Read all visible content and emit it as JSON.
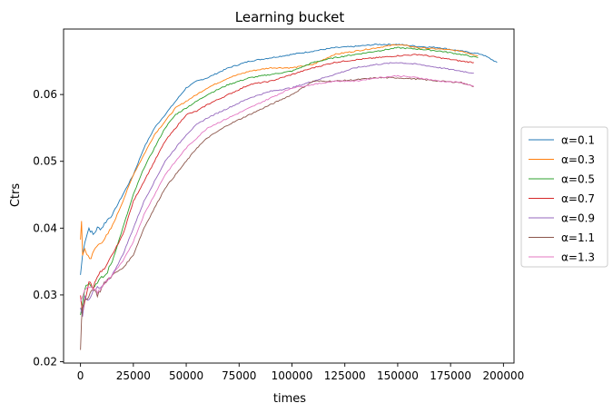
{
  "chart_data": {
    "type": "line",
    "title": "Learning bucket",
    "xlabel": "times",
    "ylabel": "Ctrs",
    "xlim": [
      -8000,
      205000
    ],
    "ylim": [
      0.0198,
      0.0698
    ],
    "xticks": [
      0,
      25000,
      50000,
      75000,
      100000,
      125000,
      150000,
      175000,
      200000
    ],
    "xtick_labels": [
      "0",
      "25000",
      "50000",
      "75000",
      "100000",
      "125000",
      "150000",
      "175000",
      "200000"
    ],
    "yticks": [
      0.02,
      0.03,
      0.04,
      0.05,
      0.06
    ],
    "ytick_labels": [
      "0.02",
      "0.03",
      "0.04",
      "0.05",
      "0.06"
    ],
    "grid": false,
    "legend_position": "center-right-outside",
    "series": [
      {
        "name": "α=0.1",
        "color": "#1f77b4",
        "x": [
          0,
          1000,
          2000,
          4000,
          6000,
          8000,
          10000,
          12000,
          15000,
          20000,
          25000,
          30000,
          35000,
          40000,
          45000,
          50000,
          55000,
          60000,
          70000,
          80000,
          90000,
          100000,
          110000,
          120000,
          130000,
          140000,
          150000,
          160000,
          170000,
          180000,
          190000,
          197000
        ],
        "y": [
          0.033,
          0.036,
          0.038,
          0.04,
          0.039,
          0.04,
          0.04,
          0.041,
          0.042,
          0.045,
          0.048,
          0.052,
          0.055,
          0.057,
          0.059,
          0.061,
          0.062,
          0.0625,
          0.064,
          0.065,
          0.0655,
          0.066,
          0.0665,
          0.067,
          0.0672,
          0.0675,
          0.0675,
          0.0672,
          0.067,
          0.0665,
          0.066,
          0.0648
        ]
      },
      {
        "name": "α=0.3",
        "color": "#ff7f0e",
        "x": [
          0,
          500,
          1000,
          2000,
          3000,
          5000,
          7000,
          10000,
          13000,
          16000,
          20000,
          25000,
          30000,
          35000,
          40000,
          45000,
          50000,
          55000,
          60000,
          70000,
          80000,
          90000,
          100000,
          110000,
          120000,
          130000,
          140000,
          150000,
          160000,
          170000,
          180000,
          188000
        ],
        "y": [
          0.038,
          0.041,
          0.036,
          0.037,
          0.036,
          0.0355,
          0.037,
          0.038,
          0.039,
          0.041,
          0.044,
          0.048,
          0.051,
          0.054,
          0.056,
          0.058,
          0.059,
          0.06,
          0.061,
          0.0625,
          0.0635,
          0.064,
          0.064,
          0.0645,
          0.066,
          0.0665,
          0.067,
          0.0675,
          0.067,
          0.0668,
          0.0665,
          0.0658
        ]
      },
      {
        "name": "α=0.5",
        "color": "#2ca02c",
        "x": [
          0,
          1000,
          2000,
          4000,
          6000,
          8000,
          10000,
          12000,
          15000,
          20000,
          25000,
          30000,
          35000,
          40000,
          45000,
          50000,
          55000,
          60000,
          70000,
          80000,
          90000,
          100000,
          110000,
          120000,
          130000,
          140000,
          150000,
          160000,
          170000,
          180000,
          188000
        ],
        "y": [
          0.027,
          0.029,
          0.031,
          0.032,
          0.031,
          0.032,
          0.0325,
          0.033,
          0.035,
          0.04,
          0.045,
          0.049,
          0.052,
          0.055,
          0.057,
          0.058,
          0.059,
          0.06,
          0.0615,
          0.0625,
          0.063,
          0.0635,
          0.0648,
          0.0655,
          0.066,
          0.0665,
          0.067,
          0.0668,
          0.0665,
          0.066,
          0.0655
        ]
      },
      {
        "name": "α=0.7",
        "color": "#d62728",
        "x": [
          0,
          1000,
          2000,
          4000,
          6000,
          8000,
          10000,
          12000,
          15000,
          20000,
          25000,
          30000,
          35000,
          40000,
          45000,
          50000,
          55000,
          60000,
          70000,
          80000,
          90000,
          100000,
          110000,
          120000,
          130000,
          140000,
          150000,
          160000,
          170000,
          180000,
          186000
        ],
        "y": [
          0.03,
          0.027,
          0.029,
          0.032,
          0.031,
          0.033,
          0.0335,
          0.034,
          0.036,
          0.039,
          0.044,
          0.047,
          0.05,
          0.053,
          0.055,
          0.057,
          0.0575,
          0.0585,
          0.06,
          0.0615,
          0.062,
          0.063,
          0.064,
          0.0648,
          0.0652,
          0.0655,
          0.0658,
          0.066,
          0.0655,
          0.065,
          0.0648
        ]
      },
      {
        "name": "α=0.9",
        "color": "#9467bd",
        "x": [
          0,
          1000,
          2000,
          4000,
          6000,
          8000,
          10000,
          12000,
          15000,
          20000,
          25000,
          30000,
          35000,
          40000,
          45000,
          50000,
          55000,
          60000,
          70000,
          80000,
          90000,
          100000,
          110000,
          120000,
          130000,
          140000,
          150000,
          160000,
          170000,
          180000,
          186000
        ],
        "y": [
          0.028,
          0.027,
          0.03,
          0.029,
          0.0305,
          0.031,
          0.031,
          0.032,
          0.033,
          0.036,
          0.04,
          0.044,
          0.047,
          0.05,
          0.052,
          0.054,
          0.0555,
          0.0565,
          0.058,
          0.0595,
          0.0605,
          0.061,
          0.062,
          0.063,
          0.064,
          0.0645,
          0.0648,
          0.0645,
          0.064,
          0.0635,
          0.0632
        ]
      },
      {
        "name": "α=1.1",
        "color": "#8c564b",
        "x": [
          0,
          500,
          1000,
          2000,
          4000,
          6000,
          8000,
          10000,
          12000,
          15000,
          20000,
          25000,
          30000,
          35000,
          40000,
          45000,
          50000,
          55000,
          60000,
          70000,
          80000,
          90000,
          100000,
          110000,
          120000,
          130000,
          140000,
          150000,
          160000,
          170000,
          180000,
          186000
        ],
        "y": [
          0.022,
          0.026,
          0.028,
          0.029,
          0.03,
          0.031,
          0.03,
          0.031,
          0.032,
          0.033,
          0.034,
          0.036,
          0.04,
          0.043,
          0.046,
          0.048,
          0.05,
          0.052,
          0.0535,
          0.0555,
          0.057,
          0.0585,
          0.06,
          0.062,
          0.062,
          0.0622,
          0.0625,
          0.0625,
          0.0623,
          0.062,
          0.0618,
          0.0612
        ]
      },
      {
        "name": "α=1.3",
        "color": "#e377c2",
        "x": [
          0,
          1000,
          2000,
          4000,
          6000,
          8000,
          10000,
          12000,
          15000,
          20000,
          25000,
          30000,
          35000,
          40000,
          45000,
          50000,
          55000,
          60000,
          70000,
          80000,
          90000,
          100000,
          110000,
          120000,
          130000,
          140000,
          150000,
          160000,
          170000,
          180000,
          186000
        ],
        "y": [
          0.029,
          0.03,
          0.031,
          0.031,
          0.031,
          0.0305,
          0.031,
          0.032,
          0.033,
          0.035,
          0.038,
          0.042,
          0.045,
          0.048,
          0.05,
          0.052,
          0.0535,
          0.055,
          0.0565,
          0.058,
          0.0595,
          0.061,
          0.0615,
          0.062,
          0.062,
          0.0625,
          0.0628,
          0.0625,
          0.062,
          0.0618,
          0.0612
        ]
      }
    ]
  }
}
